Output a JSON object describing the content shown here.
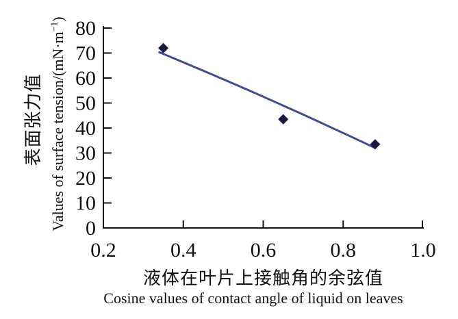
{
  "chart_data": {
    "type": "scatter",
    "points": [
      {
        "x": 0.35,
        "y": 72
      },
      {
        "x": 0.65,
        "y": 43.5
      },
      {
        "x": 0.88,
        "y": 33.5
      }
    ],
    "trend_line": {
      "x1": 0.34,
      "y1": 70.3,
      "x2": 0.88,
      "y2": 32.0
    },
    "x_ticks": [
      {
        "v": 0.2,
        "label": "0.2"
      },
      {
        "v": 0.4,
        "label": "0.4"
      },
      {
        "v": 0.6,
        "label": "0.6"
      },
      {
        "v": 0.8,
        "label": "0.8"
      },
      {
        "v": 1.0,
        "label": "1.0"
      }
    ],
    "y_ticks": [
      {
        "v": 0,
        "label": "0"
      },
      {
        "v": 10,
        "label": "10"
      },
      {
        "v": 20,
        "label": "20"
      },
      {
        "v": 30,
        "label": "30"
      },
      {
        "v": 40,
        "label": "40"
      },
      {
        "v": 50,
        "label": "50"
      },
      {
        "v": 60,
        "label": "60"
      },
      {
        "v": 70,
        "label": "70"
      },
      {
        "v": 80,
        "label": "80"
      }
    ],
    "xlim": [
      0.2,
      1.0
    ],
    "ylim": [
      0,
      80
    ],
    "grid": false,
    "legend": "none",
    "xlabel_zh": "液体在叶片上接触角的余弦值",
    "xlabel_en": "Cosine values of contact angle of liquid on leaves",
    "ylabel_zh": "表面张力值",
    "ylabel_en_main": "Values of surface tension/(mN·m",
    "ylabel_en_sup": "−1",
    "ylabel_en_close": ")",
    "colors": {
      "marker": "#181840",
      "trend": "#3e4c96",
      "axis": "#111111",
      "text": "#111111",
      "background": "#ffffff"
    }
  }
}
